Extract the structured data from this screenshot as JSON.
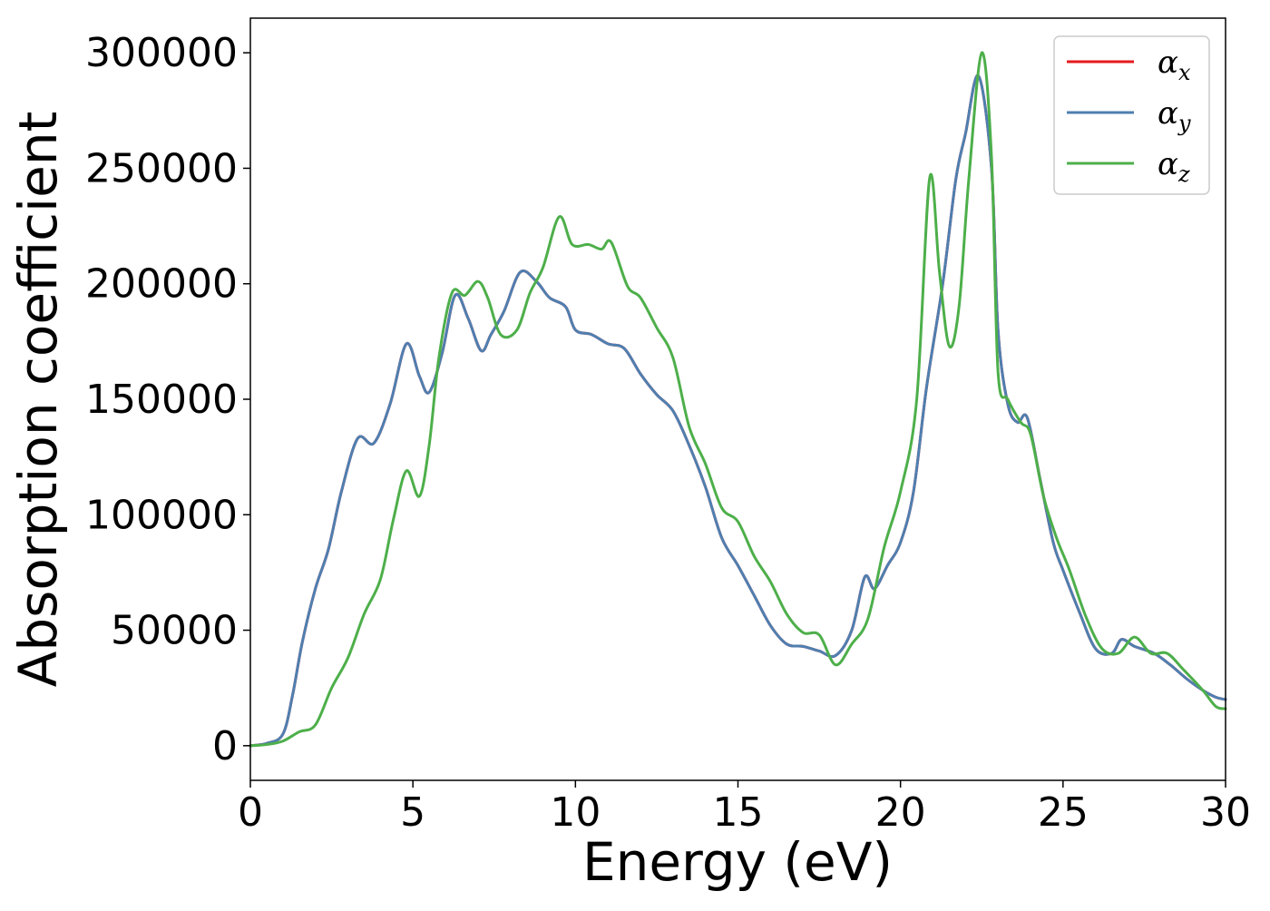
{
  "chart_data": {
    "type": "line",
    "title": "",
    "xlabel": "Energy (eV)",
    "ylabel": "Absorption coefficient",
    "xlim": [
      0,
      30
    ],
    "ylim": [
      -15000,
      315000
    ],
    "x_ticks": [
      0,
      5,
      10,
      15,
      20,
      25,
      30
    ],
    "x_tick_labels": [
      "0",
      "5",
      "10",
      "15",
      "20",
      "25",
      "30"
    ],
    "y_ticks": [
      0,
      50000,
      100000,
      150000,
      200000,
      250000,
      300000
    ],
    "y_tick_labels": [
      "0",
      "50000",
      "100000",
      "150000",
      "200000",
      "250000",
      "300000"
    ],
    "grid": false,
    "legend_position": "top-right",
    "series": [
      {
        "name": "α_x",
        "legend_base": "α",
        "legend_sub": "x",
        "color": "#e41a1c",
        "x": [
          0,
          0.5,
          1,
          1.3,
          1.6,
          2,
          2.4,
          2.8,
          3.3,
          3.8,
          4.3,
          4.8,
          5.2,
          5.5,
          5.9,
          6.3,
          6.7,
          7.1,
          7.4,
          7.8,
          8.3,
          8.8,
          9.2,
          9.7,
          10,
          10.5,
          11,
          11.5,
          12,
          12.5,
          13,
          13.5,
          14,
          14.5,
          15,
          15.5,
          16,
          16.5,
          17,
          17.5,
          18,
          18.5,
          18.9,
          19.2,
          19.6,
          20,
          20.4,
          20.8,
          21.3,
          21.7,
          22,
          22.4,
          22.8,
          23,
          23.3,
          23.6,
          23.9,
          24.3,
          24.7,
          25,
          25.5,
          26,
          26.5,
          26.8,
          27.2,
          27.8,
          28.3,
          28.8,
          29.3,
          29.7,
          30
        ],
        "y": [
          0,
          1000,
          5000,
          22000,
          45000,
          68000,
          85000,
          110000,
          133000,
          131000,
          148000,
          174000,
          160000,
          153000,
          170000,
          195000,
          185000,
          171000,
          178000,
          188000,
          205000,
          201000,
          194000,
          190000,
          180000,
          178000,
          174000,
          172000,
          161000,
          152000,
          145000,
          130000,
          112000,
          90000,
          78000,
          65000,
          52000,
          44000,
          43000,
          41000,
          39000,
          50000,
          73000,
          68000,
          78000,
          88000,
          110000,
          155000,
          200000,
          245000,
          265000,
          290000,
          250000,
          180000,
          148000,
          140000,
          142000,
          115000,
          88000,
          76000,
          58000,
          42000,
          40000,
          46000,
          43000,
          40000,
          35000,
          29000,
          24000,
          21000,
          20000
        ]
      },
      {
        "name": "α_y",
        "legend_base": "α",
        "legend_sub": "y",
        "color": "#4f7fb0",
        "x": [
          0,
          0.5,
          1,
          1.3,
          1.6,
          2,
          2.4,
          2.8,
          3.3,
          3.8,
          4.3,
          4.8,
          5.2,
          5.5,
          5.9,
          6.3,
          6.7,
          7.1,
          7.4,
          7.8,
          8.3,
          8.8,
          9.2,
          9.7,
          10,
          10.5,
          11,
          11.5,
          12,
          12.5,
          13,
          13.5,
          14,
          14.5,
          15,
          15.5,
          16,
          16.5,
          17,
          17.5,
          18,
          18.5,
          18.9,
          19.2,
          19.6,
          20,
          20.4,
          20.8,
          21.3,
          21.7,
          22,
          22.4,
          22.8,
          23,
          23.3,
          23.6,
          23.9,
          24.3,
          24.7,
          25,
          25.5,
          26,
          26.5,
          26.8,
          27.2,
          27.8,
          28.3,
          28.8,
          29.3,
          29.7,
          30
        ],
        "y": [
          0,
          1000,
          5000,
          22000,
          45000,
          68000,
          85000,
          110000,
          133000,
          131000,
          148000,
          174000,
          160000,
          153000,
          170000,
          195000,
          185000,
          171000,
          178000,
          188000,
          205000,
          201000,
          194000,
          190000,
          180000,
          178000,
          174000,
          172000,
          161000,
          152000,
          145000,
          130000,
          112000,
          90000,
          78000,
          65000,
          52000,
          44000,
          43000,
          41000,
          39000,
          50000,
          73000,
          68000,
          78000,
          88000,
          110000,
          155000,
          200000,
          245000,
          265000,
          290000,
          250000,
          180000,
          148000,
          140000,
          142000,
          115000,
          88000,
          76000,
          58000,
          42000,
          40000,
          46000,
          43000,
          40000,
          35000,
          29000,
          24000,
          21000,
          20000
        ]
      },
      {
        "name": "α_z",
        "legend_base": "α",
        "legend_sub": "z",
        "color": "#4daf4a",
        "x": [
          0,
          0.5,
          1,
          1.5,
          2,
          2.5,
          3,
          3.5,
          4,
          4.4,
          4.8,
          5.2,
          5.5,
          5.8,
          6.2,
          6.6,
          7,
          7.3,
          7.7,
          8.2,
          8.6,
          9,
          9.5,
          9.9,
          10.4,
          10.8,
          11.1,
          11.6,
          12,
          12.5,
          13,
          13.5,
          14,
          14.5,
          15,
          15.5,
          16,
          16.5,
          17,
          17.5,
          18,
          18.5,
          19,
          19.5,
          20,
          20.5,
          20.9,
          21.2,
          21.5,
          21.8,
          22.1,
          22.5,
          22.8,
          23,
          23.3,
          23.7,
          24,
          24.4,
          24.8,
          25.2,
          25.7,
          26.2,
          26.7,
          27.2,
          27.7,
          28.2,
          28.7,
          29.3,
          29.7,
          30
        ],
        "y": [
          0,
          500,
          2000,
          6000,
          9000,
          25000,
          38000,
          57000,
          72000,
          98000,
          119000,
          108000,
          130000,
          168000,
          196000,
          195000,
          201000,
          194000,
          178000,
          180000,
          196000,
          207000,
          229000,
          217000,
          217000,
          215000,
          218000,
          199000,
          194000,
          181000,
          168000,
          138000,
          122000,
          103000,
          97000,
          82000,
          71000,
          57000,
          49000,
          48000,
          35000,
          44000,
          55000,
          86000,
          110000,
          150000,
          246000,
          205000,
          173000,
          190000,
          245000,
          300000,
          255000,
          162000,
          150000,
          140000,
          135000,
          108000,
          90000,
          76000,
          56000,
          42000,
          40000,
          47000,
          40000,
          40000,
          33000,
          24000,
          17000,
          16000
        ]
      }
    ]
  }
}
